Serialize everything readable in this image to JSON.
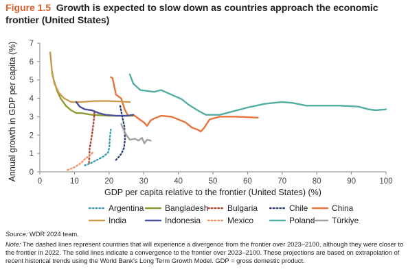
{
  "figure": {
    "label": "Figure 1.5",
    "title": "Growth is expected to slow down as countries approach the economic frontier (United States)"
  },
  "source": {
    "prefix": "Source:",
    "text": " WDR 2024 team."
  },
  "note": {
    "prefix": "Note:",
    "text": " The dashed lines represent countries that will experience a divergence from the frontier over 2023–2100, although they were closer to the frontier in 2022. The solid lines indicate a convergence to the frontier over 2023–2100. These projections are based on extrapolation of recent historical trends using the World Bank’s Long Term Growth Model. GDP = gross domestic product."
  },
  "chart_data": {
    "type": "line",
    "xlabel": "GDP per capita relative to the frontier (United States) (%)",
    "ylabel": "Annual growth in GDP per capita (%)",
    "xlim": [
      0,
      100
    ],
    "ylim": [
      0,
      7
    ],
    "xticks": [
      "0",
      "10",
      "20",
      "30",
      "40",
      "50",
      "60",
      "70",
      "80",
      "90",
      "100"
    ],
    "yticks": [
      "0",
      "1",
      "2",
      "3",
      "4",
      "5",
      "6",
      "7"
    ],
    "grid": false,
    "legend_position": "bottom",
    "series": [
      {
        "name": "Argentina",
        "color": "#3a9fb0",
        "dashed": true,
        "points": [
          [
            13,
            0.35
          ],
          [
            15,
            0.5
          ],
          [
            17,
            0.7
          ],
          [
            18.5,
            0.85
          ],
          [
            19.7,
            1.05
          ],
          [
            20.1,
            1.35
          ],
          [
            20.2,
            1.8
          ],
          [
            20.5,
            2.3
          ]
        ]
      },
      {
        "name": "Bangladesh",
        "color": "#8f9a2e",
        "dashed": false,
        "points": [
          [
            3.5,
            5.4
          ],
          [
            4,
            5.0
          ],
          [
            5,
            4.4
          ],
          [
            6,
            4.0
          ],
          [
            7.5,
            3.6
          ],
          [
            9,
            3.35
          ],
          [
            10.5,
            3.2
          ],
          [
            12,
            3.2
          ],
          [
            15,
            3.1
          ],
          [
            20,
            3.05
          ],
          [
            24,
            3.05
          ],
          [
            27,
            3.05
          ]
        ]
      },
      {
        "name": "Bulgaria",
        "color": "#b0442b",
        "dashed": true,
        "points": [
          [
            14.2,
            0.5
          ],
          [
            14.3,
            0.9
          ],
          [
            14.4,
            1.3
          ],
          [
            14.8,
            1.7
          ],
          [
            15.2,
            2.2
          ],
          [
            15.6,
            2.8
          ],
          [
            15.8,
            3.3
          ]
        ]
      },
      {
        "name": "Chile",
        "color": "#2f3f73",
        "dashed": true,
        "points": [
          [
            22,
            0.65
          ],
          [
            23,
            0.85
          ],
          [
            23.6,
            1.0
          ],
          [
            24.3,
            1.3
          ],
          [
            24.6,
            1.8
          ],
          [
            24.4,
            2.5
          ],
          [
            23.8,
            3.0
          ],
          [
            23.2,
            3.6
          ]
        ]
      },
      {
        "name": "China",
        "color": "#e7743b",
        "dashed": false,
        "points": [
          [
            20.5,
            5.15
          ],
          [
            21,
            5.1
          ],
          [
            22,
            4.2
          ],
          [
            23.5,
            4.0
          ],
          [
            24.5,
            3.4
          ],
          [
            25.5,
            3.05
          ],
          [
            27,
            3.1
          ],
          [
            28.5,
            2.9
          ],
          [
            30,
            2.7
          ],
          [
            31,
            2.5
          ],
          [
            32,
            2.8
          ],
          [
            33,
            2.9
          ],
          [
            35,
            3.05
          ],
          [
            38,
            3.0
          ],
          [
            42,
            2.7
          ],
          [
            44,
            2.4
          ],
          [
            45.5,
            2.3
          ],
          [
            46.5,
            2.2
          ],
          [
            47.5,
            2.4
          ],
          [
            49,
            2.85
          ],
          [
            52,
            3.0
          ],
          [
            57,
            3.0
          ],
          [
            63,
            2.95
          ]
        ]
      },
      {
        "name": "India",
        "color": "#c89a4c",
        "dashed": false,
        "points": [
          [
            3,
            6.5
          ],
          [
            3.5,
            5.5
          ],
          [
            4.2,
            4.8
          ],
          [
            5.5,
            4.3
          ],
          [
            7,
            4.0
          ],
          [
            9,
            3.8
          ],
          [
            12,
            3.8
          ],
          [
            16,
            3.85
          ],
          [
            20,
            3.85
          ],
          [
            26,
            3.8
          ]
        ]
      },
      {
        "name": "Indonesia",
        "color": "#4a4f9a",
        "dashed": false,
        "points": [
          [
            10.5,
            3.8
          ],
          [
            11.5,
            3.55
          ],
          [
            13,
            3.4
          ],
          [
            15,
            3.35
          ],
          [
            17,
            3.2
          ],
          [
            19,
            3.1
          ],
          [
            22,
            3.05
          ],
          [
            25,
            3.05
          ],
          [
            27,
            3.1
          ]
        ]
      },
      {
        "name": "Mexico",
        "color": "#ee9168",
        "dashed": true,
        "points": [
          [
            8,
            0.1
          ],
          [
            10,
            0.25
          ],
          [
            12,
            0.5
          ],
          [
            13,
            0.7
          ],
          [
            14.5,
            0.9
          ],
          [
            15.5,
            1.1
          ]
        ]
      },
      {
        "name": "Poland",
        "color": "#52ada3",
        "dashed": false,
        "points": [
          [
            26,
            5.3
          ],
          [
            27,
            4.8
          ],
          [
            29,
            4.45
          ],
          [
            31,
            4.4
          ],
          [
            33,
            4.35
          ],
          [
            35,
            4.45
          ],
          [
            38,
            4.2
          ],
          [
            41,
            3.95
          ],
          [
            43,
            3.65
          ],
          [
            46,
            3.3
          ],
          [
            48,
            3.1
          ],
          [
            52,
            3.1
          ],
          [
            55,
            3.25
          ],
          [
            60,
            3.5
          ],
          [
            65,
            3.7
          ],
          [
            70,
            3.8
          ],
          [
            73,
            3.75
          ],
          [
            77,
            3.6
          ],
          [
            82,
            3.6
          ],
          [
            87,
            3.6
          ],
          [
            92,
            3.55
          ],
          [
            95,
            3.4
          ],
          [
            97,
            3.35
          ],
          [
            100,
            3.4
          ]
        ]
      },
      {
        "name": "Türkiye",
        "color": "#a0a0a0",
        "dashed": false,
        "points": [
          [
            23.5,
            2.6
          ],
          [
            24.2,
            2.3
          ],
          [
            25,
            2.0
          ],
          [
            26,
            1.75
          ],
          [
            27.5,
            1.8
          ],
          [
            28.5,
            1.7
          ],
          [
            29.5,
            1.85
          ],
          [
            30.2,
            1.55
          ],
          [
            31,
            1.75
          ],
          [
            32,
            1.7
          ]
        ]
      }
    ]
  }
}
